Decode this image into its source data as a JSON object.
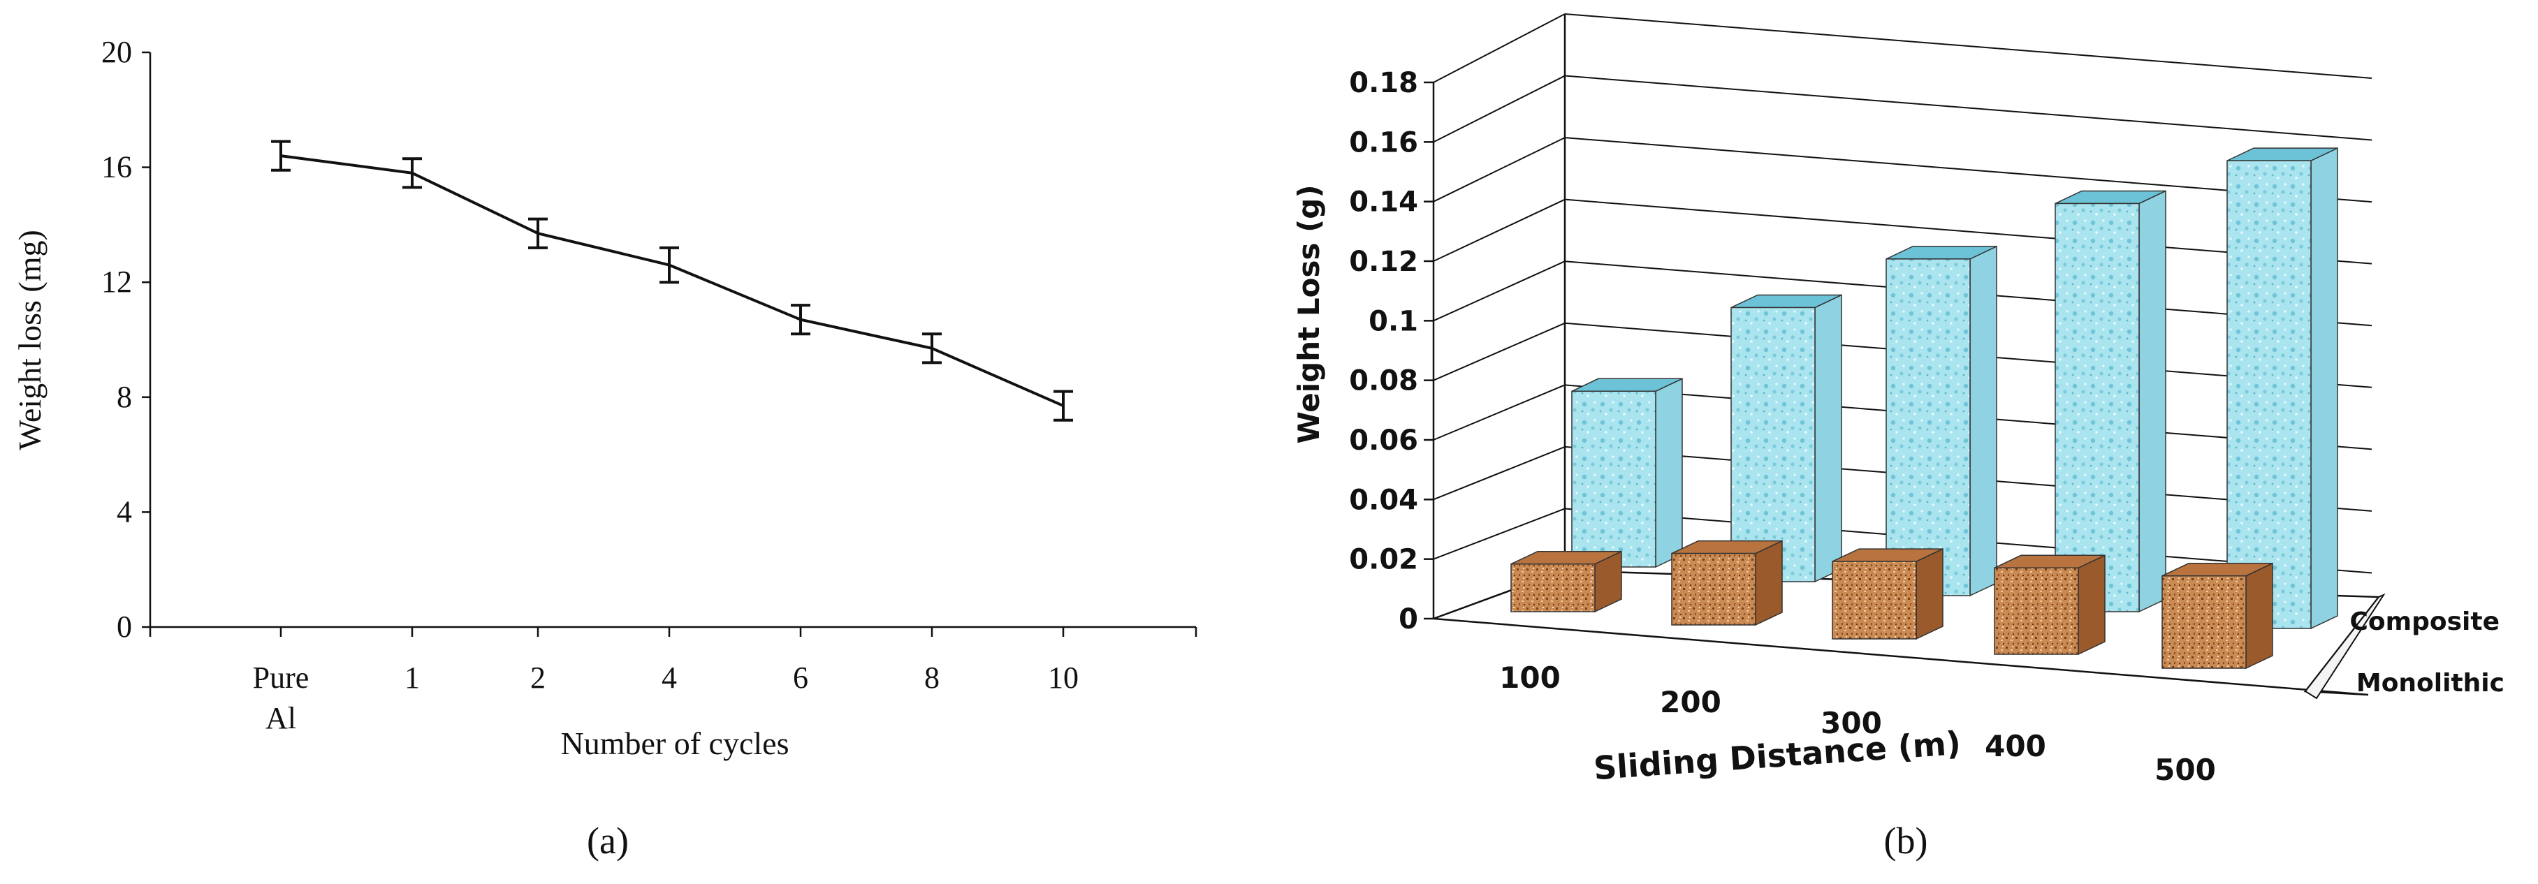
{
  "chart_data": [
    {
      "type": "line",
      "panel_label": "(a)",
      "xlabel": "Number of cycles",
      "ylabel": "Weight loss (mg)",
      "categories": [
        "Pure Al",
        "1",
        "2",
        "4",
        "6",
        "8",
        "10"
      ],
      "categories_lines": [
        [
          "Pure",
          "Al"
        ],
        [
          "1"
        ],
        [
          "2"
        ],
        [
          "4"
        ],
        [
          "6"
        ],
        [
          "8"
        ],
        [
          "10"
        ]
      ],
      "values": [
        16.4,
        15.8,
        13.7,
        12.6,
        10.7,
        9.7,
        7.7
      ],
      "errors": [
        0.5,
        0.5,
        0.5,
        0.6,
        0.5,
        0.5,
        0.5
      ],
      "ylim": [
        0,
        20
      ],
      "yticks": [
        "0",
        "4",
        "8",
        "12",
        "16",
        "20"
      ],
      "grid": false,
      "line_color": "#111111"
    },
    {
      "type": "bar",
      "style": "3d",
      "panel_label": "(b)",
      "xlabel": "Sliding Distance (m)",
      "ylabel": "Weight Loss (g)",
      "categories": [
        "100",
        "200",
        "300",
        "400",
        "500"
      ],
      "ylim": [
        0,
        0.18
      ],
      "yticks": [
        "0",
        "0.02",
        "0.04",
        "0.06",
        "0.08",
        "0.1",
        "0.12",
        "0.14",
        "0.16",
        "0.18"
      ],
      "grid": true,
      "series": [
        {
          "name": "Composite",
          "values": [
            0.059,
            0.092,
            0.113,
            0.137,
            0.157
          ],
          "color": "#a9e4ef"
        },
        {
          "name": "Monolithic",
          "values": [
            0.016,
            0.024,
            0.026,
            0.029,
            0.031
          ],
          "color": "#c27c45"
        }
      ]
    }
  ]
}
